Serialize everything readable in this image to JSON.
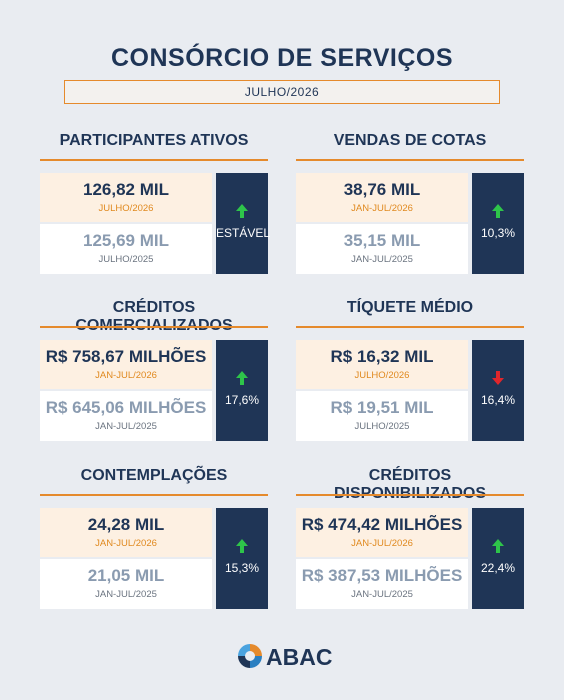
{
  "header": {
    "title": "CONSÓRCIO DE SERVIÇOS",
    "subtitle": "JULHO/2026"
  },
  "cards": [
    {
      "title": "PARTICIPANTES ATIVOS",
      "current_value": "126,82 MIL",
      "current_period": "JULHO/2026",
      "previous_value": "125,69 MIL",
      "previous_period": "JULHO/2025",
      "change": "ESTÁVEL",
      "trend": "up"
    },
    {
      "title": "VENDAS DE COTAS",
      "current_value": "38,76 MIL",
      "current_period": "JAN-JUL/2026",
      "previous_value": "35,15 MIL",
      "previous_period": "JAN-JUL/2025",
      "change": "10,3%",
      "trend": "up"
    },
    {
      "title": "CRÉDITOS COMERCIALIZADOS",
      "current_value": "R$ 758,67 MILHÕES",
      "current_period": "JAN-JUL/2026",
      "previous_value": "R$ 645,06 MILHÕES",
      "previous_period": "JAN-JUL/2025",
      "change": "17,6%",
      "trend": "up"
    },
    {
      "title": "TÍQUETE MÉDIO",
      "current_value": "R$ 16,32 MIL",
      "current_period": "JULHO/2026",
      "previous_value": "R$ 19,51 MIL",
      "previous_period": "JULHO/2025",
      "change": "16,4%",
      "trend": "down"
    },
    {
      "title": "CONTEMPLAÇÕES",
      "current_value": "24,28 MIL",
      "current_period": "JAN-JUL/2026",
      "previous_value": "21,05 MIL",
      "previous_period": "JAN-JUL/2025",
      "change": "15,3%",
      "trend": "up"
    },
    {
      "title": "CRÉDITOS DISPONIBILIZADOS",
      "current_value": "R$ 474,42 MILHÕES",
      "current_period": "JAN-JUL/2026",
      "previous_value": "R$ 387,53 MILHÕES",
      "previous_period": "JAN-JUL/2025",
      "change": "22,4%",
      "trend": "up"
    }
  ],
  "footer": {
    "logo": "ABAC"
  }
}
